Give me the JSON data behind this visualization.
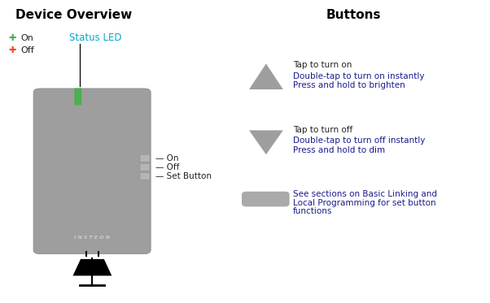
{
  "title_left": "Device Overview",
  "title_right": "Buttons",
  "bg_color": "#ffffff",
  "device_color": "#9e9e9e",
  "led_color": "#4caf50",
  "insteon_text": "I N S T E O N",
  "status_led_label": "Status LED",
  "on_label": "On",
  "off_label": "Off",
  "set_button_label": "Set Button",
  "legend_on_color": "#4caf50",
  "legend_off_color": "#f44336",
  "arrow_color": "#9e9e9e",
  "text_color_black": "#000000",
  "text_color_blue": "#1a1a8c",
  "text_color_dark": "#212121",
  "status_led_color": "#00aacc",
  "up_arrow_text1": "Tap to turn on",
  "up_arrow_text2": "Double-tap to turn on instantly",
  "up_arrow_text3": "Press and hold to brighten",
  "down_arrow_text1": "Tap to turn off",
  "down_arrow_text2": "Double-tap to turn off instantly",
  "down_arrow_text3": "Press and hold to dim",
  "set_text1": "See sections on Basic Linking and",
  "set_text2": "Local Programming for set button",
  "set_text3": "functions"
}
